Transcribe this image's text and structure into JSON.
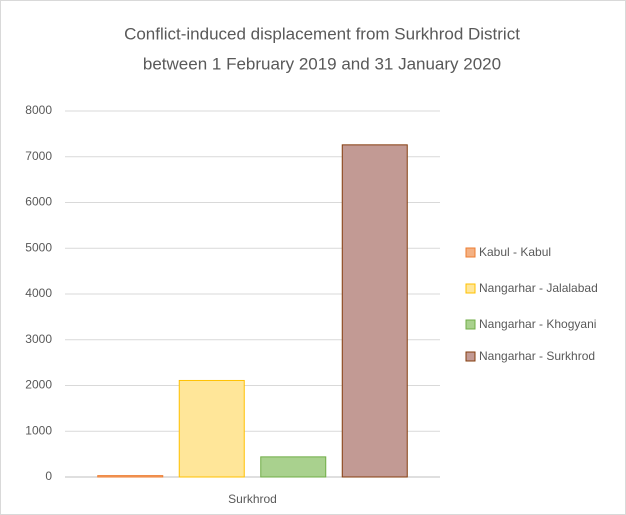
{
  "chart_data": {
    "type": "bar",
    "title": [
      "Conflict-induced displacement from Surkhrod District",
      "between 1 February 2019 and 31 January 2020"
    ],
    "categories": [
      "Surkhrod"
    ],
    "series": [
      {
        "name": "Kabul - Kabul",
        "color": "#f4b183",
        "border_color": "#ed7d31",
        "values": [
          30
        ]
      },
      {
        "name": "Nangarhar - Jalalabad",
        "color": "#ffe699",
        "border_color": "#ffc000",
        "values": [
          2110
        ]
      },
      {
        "name": "Nangarhar - Khogyani",
        "color": "#a9d18e",
        "border_color": "#70ad47",
        "values": [
          440
        ]
      },
      {
        "name": "Nangarhar - Surkhrod",
        "color": "#c29a94",
        "border_color": "#843c0c",
        "values": [
          7260
        ]
      }
    ],
    "ylim": [
      0,
      8000
    ],
    "yticks": [
      0,
      1000,
      2000,
      3000,
      4000,
      5000,
      6000,
      7000,
      8000
    ],
    "grid": true,
    "legend": "right"
  }
}
